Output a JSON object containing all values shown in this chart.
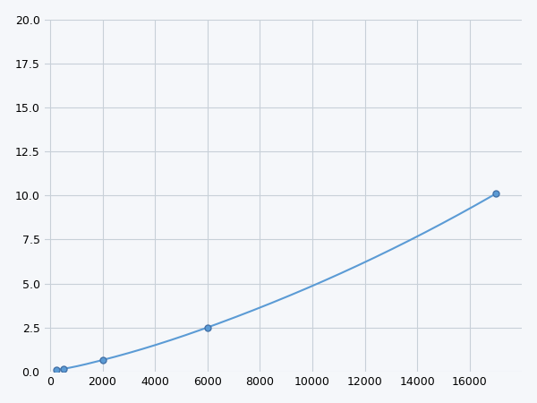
{
  "x": [
    250,
    500,
    2000,
    6000,
    17000
  ],
  "y": [
    0.1,
    0.15,
    0.65,
    2.5,
    10.1
  ],
  "line_color": "#5b9bd5",
  "marker_color": "#4472a8",
  "marker_size": 5,
  "xlim": [
    -200,
    18000
  ],
  "ylim": [
    0,
    20
  ],
  "xticks": [
    0,
    2000,
    4000,
    6000,
    8000,
    10000,
    12000,
    14000,
    16000
  ],
  "yticks": [
    0.0,
    2.5,
    5.0,
    7.5,
    10.0,
    12.5,
    15.0,
    17.5,
    20.0
  ],
  "grid_color": "#c8d0d8",
  "background_color": "#f5f7fa",
  "figure_bg": "#f5f7fa"
}
